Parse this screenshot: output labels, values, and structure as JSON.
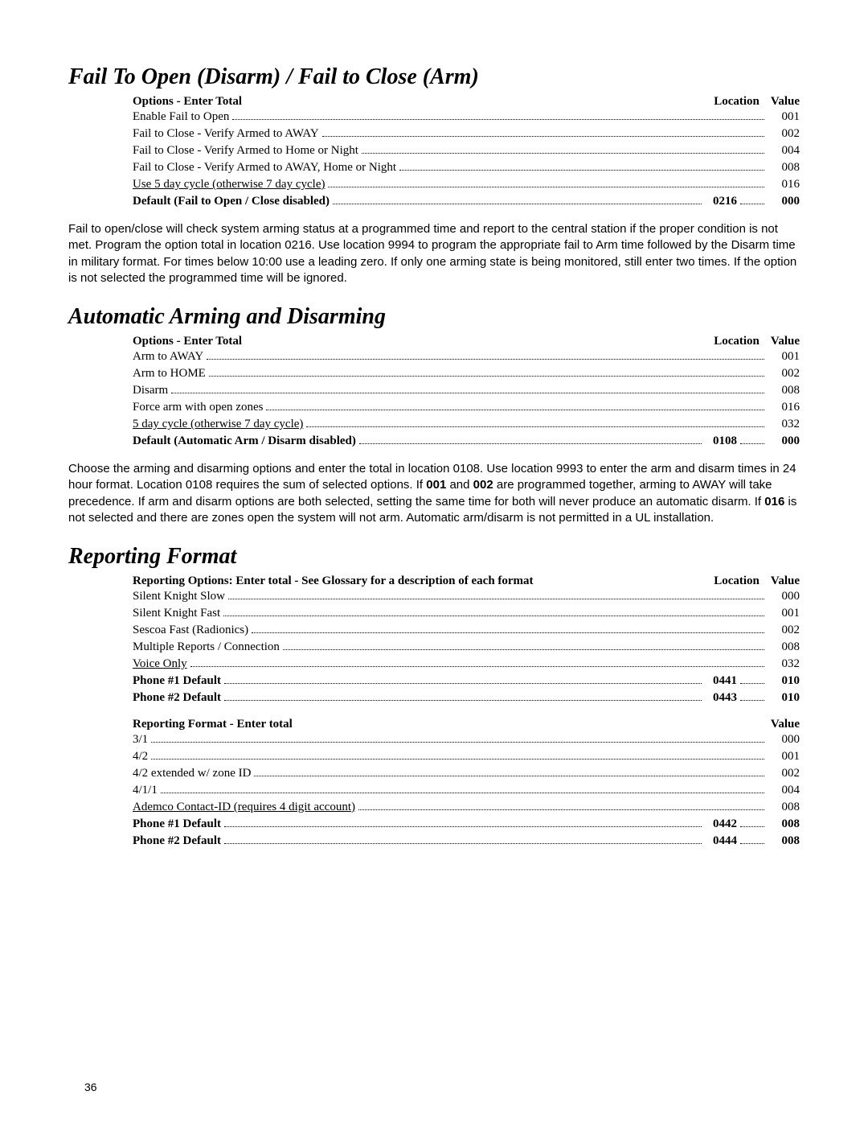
{
  "page_number": "36",
  "section1": {
    "title": "Fail To Open (Disarm) / Fail to Close (Arm)",
    "header_label": "Options - Enter Total",
    "header_loc": "Location",
    "header_val": "Value",
    "rows": [
      {
        "label": "Enable Fail to Open",
        "val": "001",
        "bold": false
      },
      {
        "label": "Fail to Close - Verify Armed to AWAY",
        "val": "002",
        "bold": false
      },
      {
        "label": "Fail to Close - Verify Armed to Home or Night",
        "val": "004",
        "bold": false
      },
      {
        "label": "Fail to Close - Verify Armed to AWAY, Home or Night",
        "val": "008",
        "bold": false
      },
      {
        "label": "Use 5 day cycle (otherwise 7 day cycle)",
        "val": "016",
        "bold": false,
        "underline": true
      },
      {
        "label": "Default (Fail to Open / Close disabled)",
        "loc": "0216",
        "val": "000",
        "bold": true
      }
    ],
    "para": "Fail to open/close will check system arming status at a programmed time and report to the central station if the proper condition is not met.   Program the option total in location 0216.  Use location 9994 to program the appropriate fail to Arm time followed by the Disarm time in military format.  For times below 10:00 use a leading zero.  If only one arming state is being monitored, still enter two times.  If the option is not selected the programmed time will be ignored."
  },
  "section2": {
    "title": "Automatic Arming and Disarming",
    "header_label": "Options - Enter Total",
    "header_loc": "Location",
    "header_val": "Value",
    "rows": [
      {
        "label": "Arm to AWAY",
        "val": "001",
        "bold": false
      },
      {
        "label": "Arm to HOME",
        "val": "002",
        "bold": false
      },
      {
        "label": "Disarm",
        "val": "008",
        "bold": false
      },
      {
        "label": "Force arm with open zones",
        "val": "016",
        "bold": false
      },
      {
        "label": "5 day cycle (otherwise 7 day cycle)",
        "val": "032",
        "bold": false,
        "underline": true
      },
      {
        "label": "Default (Automatic Arm / Disarm disabled)",
        "loc": "0108",
        "val": "000",
        "bold": true
      }
    ],
    "para_parts": [
      "Choose the arming and disarming options and enter the total in location 0108.  Use  location 9993 to enter the arm and disarm times in 24 hour format.  Location 0108 requires the sum of selected options. If ",
      "001",
      " and ",
      "002",
      " are programmed together, arming to AWAY will take precedence. If arm and disarm options are both selected, setting the same time for both will never produce an automatic disarm.  If ",
      "016",
      " is not selected and there are zones open the system will not arm.   Automatic arm/disarm is not permitted in a UL installation."
    ]
  },
  "section3": {
    "title": "Reporting Format",
    "header_label": "Reporting Options: Enter total - See Glossary for a description of each format",
    "header_loc": "Location",
    "header_val": "Value",
    "rows": [
      {
        "label": "Silent Knight Slow",
        "val": "000",
        "bold": false
      },
      {
        "label": "Silent Knight Fast",
        "val": "001",
        "bold": false
      },
      {
        "label": "Sescoa Fast (Radionics)",
        "val": "002",
        "bold": false
      },
      {
        "label": "Multiple Reports / Connection",
        "val": "008",
        "bold": false
      },
      {
        "label": "Voice Only",
        "val": "032",
        "bold": false,
        "underline": true
      },
      {
        "label": "Phone #1 Default",
        "loc": "0441",
        "val": "010",
        "bold": true
      },
      {
        "label": "Phone #2 Default",
        "loc": "0443",
        "val": "010",
        "bold": true
      }
    ],
    "header2_label": "Reporting Format - Enter total",
    "header2_val": "Value",
    "rows2": [
      {
        "label": "3/1",
        "val": "000",
        "bold": false
      },
      {
        "label": "4/2",
        "val": "001",
        "bold": false
      },
      {
        "label": "4/2 extended w/ zone ID",
        "val": "002",
        "bold": false
      },
      {
        "label": "4/1/1",
        "val": "004",
        "bold": false
      },
      {
        "label": "Ademco Contact-ID (requires 4 digit account)",
        "val": "008",
        "bold": false,
        "underline": true
      },
      {
        "label": "Phone #1 Default",
        "loc": "0442",
        "val": "008",
        "bold": true
      },
      {
        "label": "Phone #2 Default",
        "loc": "0444",
        "val": "008",
        "bold": true
      }
    ]
  }
}
